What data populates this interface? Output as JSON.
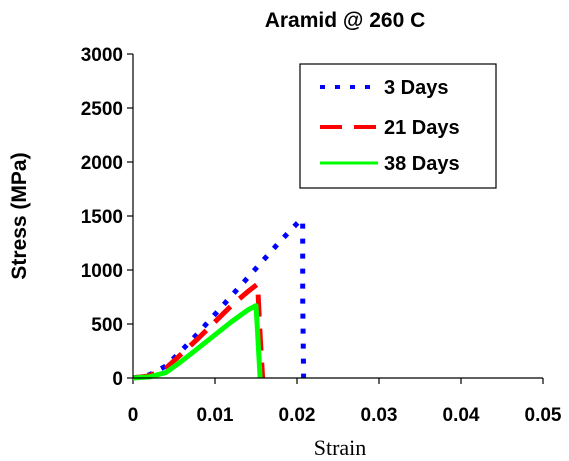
{
  "chart_data": {
    "type": "line",
    "title": "Aramid @ 260 C",
    "xlabel": "Strain",
    "ylabel": "Stress (MPa)",
    "xlim": [
      0,
      0.05
    ],
    "ylim": [
      0,
      3000
    ],
    "x_ticks": [
      "0",
      "0.01",
      "0.02",
      "0.03",
      "0.04",
      "0.05"
    ],
    "y_ticks": [
      "0",
      "500",
      "1000",
      "1500",
      "2000",
      "2500",
      "3000"
    ],
    "x_tick_values": [
      0,
      0.01,
      0.02,
      0.03,
      0.04,
      0.05
    ],
    "y_tick_values": [
      0,
      500,
      1000,
      1500,
      2000,
      2500,
      3000
    ],
    "grid": false,
    "legend_position": "top-right",
    "series": [
      {
        "name": "3 Days",
        "color": "#0000ff",
        "style": "dotted",
        "x": [
          0,
          0.002,
          0.004,
          0.006,
          0.008,
          0.01,
          0.012,
          0.014,
          0.016,
          0.018,
          0.0205,
          0.0207,
          0.0207,
          0.0208
        ],
        "y": [
          0,
          30,
          110,
          260,
          420,
          590,
          760,
          930,
          1100,
          1270,
          1470,
          1450,
          750,
          0
        ]
      },
      {
        "name": "21 Days",
        "color": "#ff0000",
        "style": "dashed",
        "x": [
          0,
          0.002,
          0.004,
          0.006,
          0.008,
          0.01,
          0.012,
          0.014,
          0.0152,
          0.0155,
          0.0158
        ],
        "y": [
          0,
          20,
          90,
          230,
          370,
          520,
          670,
          800,
          870,
          400,
          0
        ]
      },
      {
        "name": "38 Days",
        "color": "#00ff00",
        "style": "solid",
        "x": [
          0,
          0.002,
          0.004,
          0.006,
          0.008,
          0.01,
          0.012,
          0.014,
          0.015,
          0.0152,
          0.0155
        ],
        "y": [
          0,
          10,
          50,
          160,
          280,
          400,
          520,
          630,
          670,
          420,
          0
        ]
      }
    ]
  }
}
